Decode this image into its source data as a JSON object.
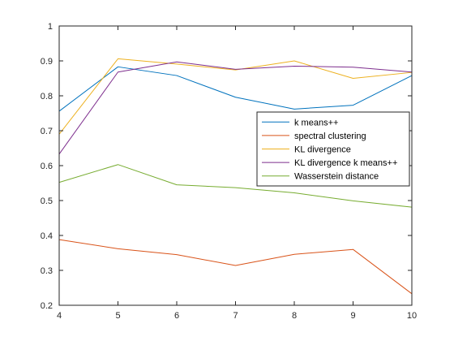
{
  "chart_data": {
    "type": "line",
    "title": "",
    "xlabel": "",
    "ylabel": "",
    "xlim": [
      4,
      10
    ],
    "ylim": [
      0.2,
      1
    ],
    "x": [
      4,
      5,
      6,
      7,
      8,
      9,
      10
    ],
    "xticks": [
      "4",
      "5",
      "6",
      "7",
      "8",
      "9",
      "10"
    ],
    "yticks": [
      "0.2",
      "0.3",
      "0.4",
      "0.5",
      "0.6",
      "0.7",
      "0.8",
      "0.9",
      "1"
    ],
    "grid": false,
    "legend_position": "right",
    "series": [
      {
        "name": "k means++",
        "color": "#0072BD",
        "values": [
          0.756,
          0.883,
          0.858,
          0.796,
          0.762,
          0.773,
          0.858
        ]
      },
      {
        "name": "spectral clustering",
        "color": "#D95319",
        "values": [
          0.388,
          0.362,
          0.345,
          0.314,
          0.346,
          0.36,
          0.233
        ]
      },
      {
        "name": "KL divergence",
        "color": "#EDB120",
        "values": [
          0.69,
          0.906,
          0.891,
          0.874,
          0.9,
          0.85,
          0.867
        ]
      },
      {
        "name": "KL divergence k means++",
        "color": "#7E2F8E",
        "values": [
          0.633,
          0.868,
          0.897,
          0.876,
          0.885,
          0.882,
          0.868
        ]
      },
      {
        "name": "Wasserstein distance",
        "color": "#77AC30",
        "values": [
          0.552,
          0.603,
          0.545,
          0.537,
          0.522,
          0.499,
          0.481
        ]
      }
    ]
  }
}
